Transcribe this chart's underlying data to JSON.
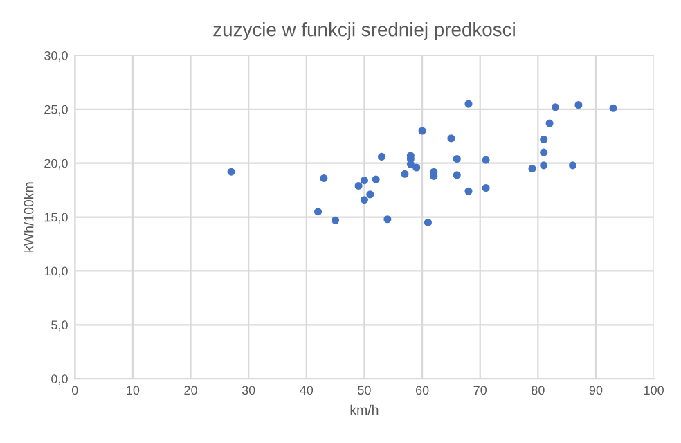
{
  "chart_data": {
    "type": "scatter",
    "title": "zuzycie w funkcji sredniej predkosci",
    "xlabel": "km/h",
    "ylabel": "kWh/100km",
    "x": [
      27,
      42,
      43,
      45,
      49,
      50,
      50,
      51,
      52,
      53,
      54,
      57,
      58,
      58,
      58,
      59,
      60,
      61,
      62,
      62,
      65,
      66,
      66,
      68,
      68,
      71,
      71,
      79,
      81,
      81,
      81,
      82,
      83,
      86,
      87,
      93
    ],
    "series": [
      {
        "color": "#4472c4",
        "values": [
          19.2,
          15.5,
          18.6,
          14.7,
          17.9,
          18.4,
          16.6,
          17.1,
          18.5,
          20.6,
          14.8,
          19.0,
          20.7,
          20.4,
          19.9,
          19.6,
          23.0,
          14.5,
          19.2,
          18.8,
          22.3,
          20.4,
          18.9,
          25.5,
          17.4,
          20.3,
          17.7,
          19.5,
          22.2,
          21.0,
          19.8,
          23.7,
          25.2,
          19.8,
          25.4,
          25.1
        ]
      }
    ],
    "xlim": [
      0,
      100
    ],
    "ylim": [
      0,
      30
    ],
    "xticks": [
      0,
      10,
      20,
      30,
      40,
      50,
      60,
      70,
      80,
      90,
      100
    ],
    "yticks": [
      {
        "value": 0,
        "label": "0,0"
      },
      {
        "value": 5,
        "label": "5,0"
      },
      {
        "value": 10,
        "label": "10,0"
      },
      {
        "value": 15,
        "label": "15,0"
      },
      {
        "value": 20,
        "label": "20,0"
      },
      {
        "value": 25,
        "label": "25,0"
      },
      {
        "value": 30,
        "label": "30,0"
      }
    ],
    "grid": true,
    "marker": "circle"
  }
}
